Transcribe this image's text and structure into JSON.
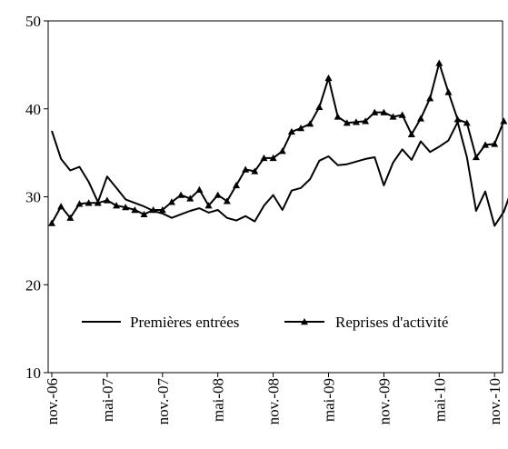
{
  "chart_data": {
    "type": "line",
    "xlabel": "",
    "ylabel": "",
    "ylim": [
      10,
      50
    ],
    "yticks": [
      10,
      20,
      30,
      40,
      50
    ],
    "x_tick_labels": [
      "nov.-06",
      "mai-07",
      "nov.-07",
      "mai-08",
      "nov.-08",
      "mai-09",
      "nov.-09",
      "mai-10",
      "nov.-10"
    ],
    "x_tick_month_index": [
      0,
      6,
      12,
      18,
      24,
      30,
      36,
      42,
      48
    ],
    "legend_position": "inside-bottom",
    "grid": false,
    "series": [
      {
        "name": "Premières entrées",
        "marker": "none",
        "color": "#000000",
        "values": [
          37.5,
          34.3,
          33.0,
          33.4,
          31.7,
          29.4,
          32.3,
          31.0,
          29.7,
          29.3,
          28.9,
          28.4,
          28.1,
          27.6,
          28.0,
          28.4,
          28.7,
          28.2,
          28.5,
          27.6,
          27.3,
          27.8,
          27.2,
          29.0,
          30.2,
          28.5,
          30.7,
          31.0,
          32.0,
          34.1,
          34.6,
          33.6,
          33.7,
          34.0,
          34.3,
          34.5,
          31.3,
          33.9,
          35.4,
          34.2,
          36.3,
          35.1,
          35.7,
          36.4,
          38.5,
          34.5,
          28.4,
          30.6,
          26.7,
          28.3,
          31.2
        ]
      },
      {
        "name": "Reprises d'activité",
        "marker": "triangle",
        "color": "#000000",
        "values": [
          27.0,
          28.9,
          27.6,
          29.2,
          29.3,
          29.3,
          29.6,
          29.0,
          28.8,
          28.5,
          28.0,
          28.5,
          28.5,
          29.4,
          30.2,
          29.8,
          30.8,
          29.0,
          30.2,
          29.5,
          31.3,
          33.1,
          32.9,
          34.4,
          34.4,
          35.2,
          37.4,
          37.8,
          38.3,
          40.2,
          43.5,
          39.1,
          38.4,
          38.5,
          38.6,
          39.6,
          39.6,
          39.1,
          39.3,
          37.1,
          38.9,
          41.2,
          45.2,
          41.9,
          38.8,
          38.4,
          34.5,
          35.9,
          36.0,
          38.6
        ]
      }
    ]
  }
}
